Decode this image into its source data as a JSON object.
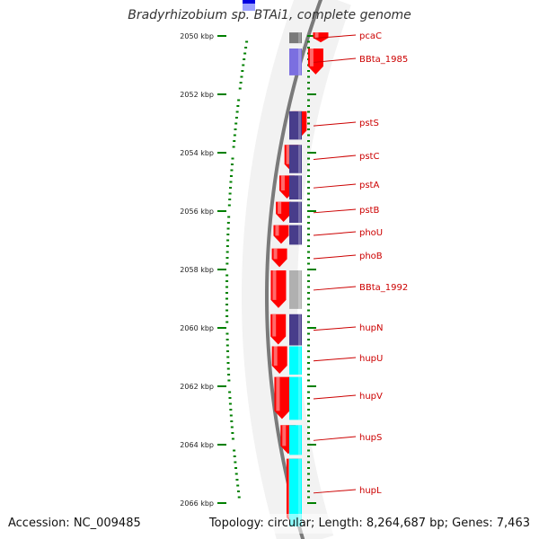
{
  "title": "Bradyrhizobium sp. BTAi1, complete genome",
  "footer": {
    "accession": "Accession: NC_009485",
    "topology": "Topology: circular; Length: 8,264,687 bp; Genes: 7,463"
  },
  "colors": {
    "forward_strand": "#ff0000",
    "blue_feature": "#483d8b",
    "cyan_feature": "#00ffff",
    "grey_feature": "#b0b0b0",
    "label": "#cc0000",
    "tick": "#008000"
  },
  "ticks": [
    {
      "kbp": 2050,
      "label": "2050 kbp"
    },
    {
      "kbp": 2052,
      "label": "2052 kbp"
    },
    {
      "kbp": 2054,
      "label": "2054 kbp"
    },
    {
      "kbp": 2056,
      "label": "2056 kbp"
    },
    {
      "kbp": 2058,
      "label": "2058 kbp"
    },
    {
      "kbp": 2060,
      "label": "2060 kbp"
    },
    {
      "kbp": 2062,
      "label": "2062 kbp"
    },
    {
      "kbp": 2064,
      "label": "2064 kbp"
    },
    {
      "kbp": 2066,
      "label": "2066 kbp"
    }
  ],
  "genes": [
    {
      "name": "pcaC",
      "start": 2049.85,
      "end": 2050.25,
      "func": "grey"
    },
    {
      "name": "BBta_1985",
      "start": 2050.4,
      "end": 2051.35,
      "func": "lightblue"
    },
    {
      "name": "pstS",
      "start": 2052.55,
      "end": 2053.55,
      "func": "blue"
    },
    {
      "name": "pstC",
      "start": 2053.7,
      "end": 2054.7,
      "func": "blue"
    },
    {
      "name": "pstA",
      "start": 2054.75,
      "end": 2055.6,
      "func": "blue"
    },
    {
      "name": "pstB",
      "start": 2055.65,
      "end": 2056.4,
      "func": "blue"
    },
    {
      "name": "phoU",
      "start": 2056.45,
      "end": 2057.15,
      "func": "blue"
    },
    {
      "name": "phoB",
      "start": 2057.25,
      "end": 2057.95,
      "func": "none"
    },
    {
      "name": "BBta_1992",
      "start": 2058.0,
      "end": 2059.35,
      "func": "grey"
    },
    {
      "name": "hupN",
      "start": 2059.5,
      "end": 2060.6,
      "func": "blue"
    },
    {
      "name": "hupU",
      "start": 2060.6,
      "end": 2061.6,
      "func": "cyan"
    },
    {
      "name": "hupV",
      "start": 2061.65,
      "end": 2063.15,
      "func": "cyan"
    },
    {
      "name": "hupS",
      "start": 2063.3,
      "end": 2064.35,
      "func": "cyan"
    },
    {
      "name": "hupL",
      "start": 2064.45,
      "end": 2066.8,
      "func": "cyan"
    }
  ]
}
